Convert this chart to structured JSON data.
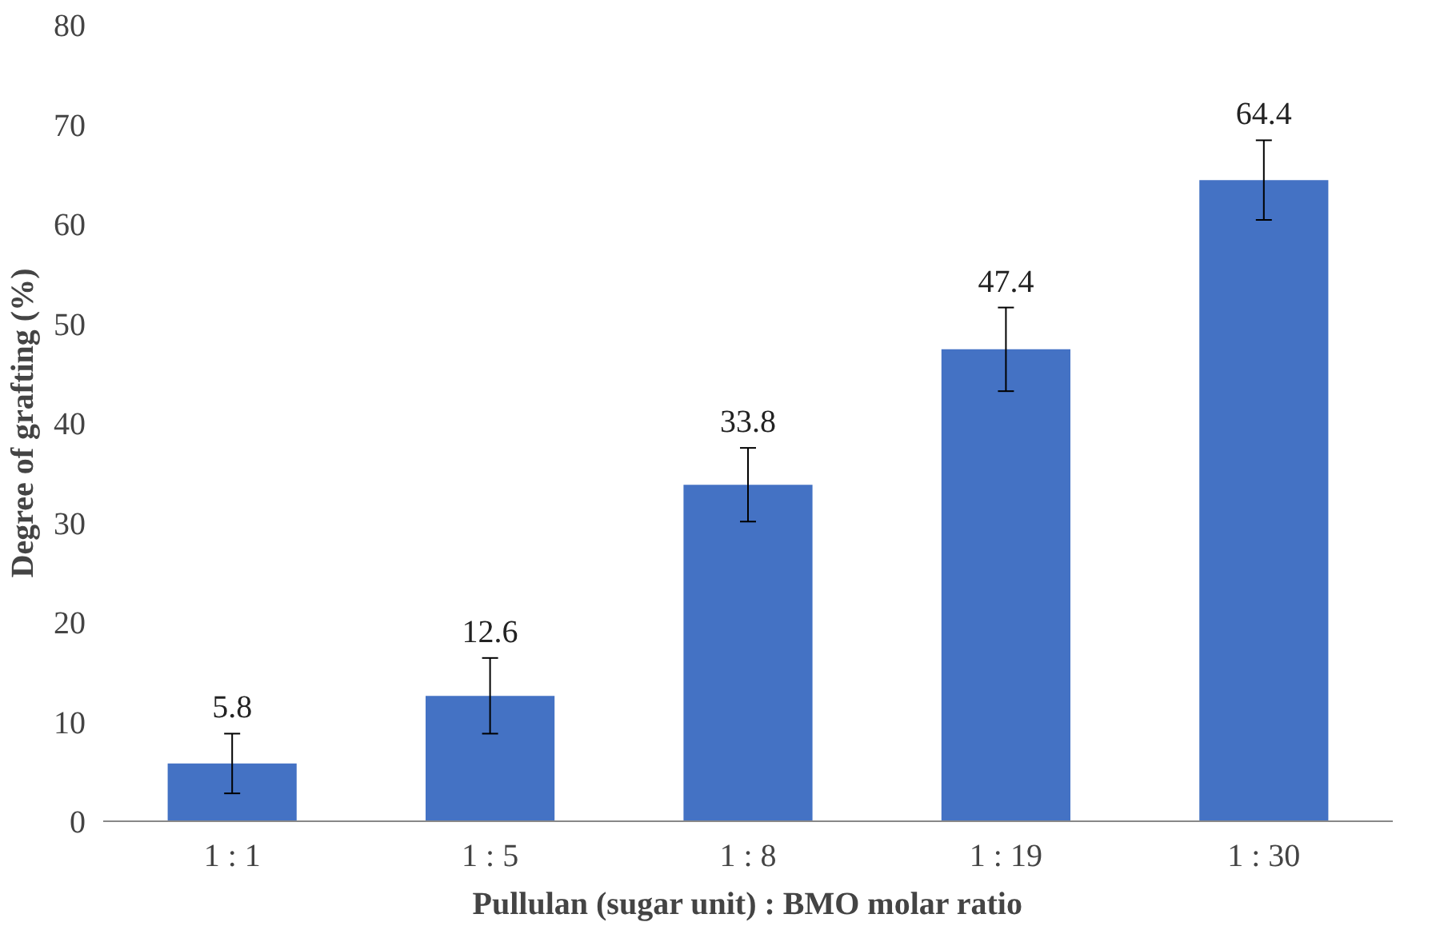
{
  "chart_data": {
    "type": "bar",
    "xlabel": "Pullulan (sugar unit) : BMO molar ratio",
    "ylabel": "Degree of grafting (%)",
    "categories": [
      "1 : 1",
      "1 : 5",
      "1 : 8",
      "1 : 19",
      "1 : 30"
    ],
    "values": [
      5.8,
      12.6,
      33.8,
      47.4,
      64.4
    ],
    "errors": [
      3.0,
      3.8,
      3.7,
      4.2,
      4.0
    ],
    "color": "#4472c4",
    "ylim": [
      0,
      80
    ],
    "yticks": [
      0,
      10,
      20,
      30,
      40,
      50,
      60,
      70,
      80
    ],
    "data_labels": true,
    "grid": false
  }
}
